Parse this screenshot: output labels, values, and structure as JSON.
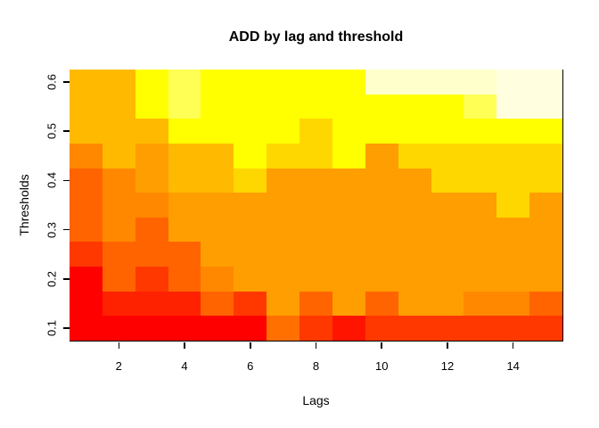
{
  "title": "ADD by lag and threshold",
  "x_axis": {
    "label": "Lags",
    "ticks": [
      "2",
      "4",
      "6",
      "8",
      "10",
      "12",
      "14"
    ],
    "tick_values": [
      2,
      4,
      6,
      8,
      10,
      12,
      14
    ]
  },
  "y_axis": {
    "label": "Thresholds",
    "ticks": [
      "0.1",
      "0.2",
      "0.3",
      "0.4",
      "0.5",
      "0.6"
    ],
    "tick_values": [
      0.1,
      0.2,
      0.3,
      0.4,
      0.5,
      0.6
    ]
  },
  "chart_data": {
    "type": "heatmap",
    "title": "ADD by lag and threshold",
    "xlabel": "Lags",
    "ylabel": "Thresholds",
    "x_categories_lags": [
      1,
      2,
      3,
      4,
      5,
      6,
      7,
      8,
      9,
      10,
      11,
      12,
      13,
      14,
      15
    ],
    "y_categories_thresholds_top_to_bottom": [
      0.6,
      0.55,
      0.5,
      0.45,
      0.4,
      0.35,
      0.3,
      0.25,
      0.2,
      0.15,
      0.1
    ],
    "x_range": [
      0.5,
      15.5
    ],
    "y_range": [
      0.075,
      0.625
    ],
    "grid": false,
    "legend": "none",
    "palette_style": "heat.colors (red -> orange -> yellow -> near-white); numeric scale not shown, values encoded as cell colors",
    "palette_levels_low_to_high": [
      "#FF0000",
      "#FF1400",
      "#FF2200",
      "#FF3800",
      "#FF6400",
      "#FF7000",
      "#FF8800",
      "#FF9E00",
      "#FFBA00",
      "#FFD700",
      "#FFFF00",
      "#FFFF55",
      "#FFFFCC",
      "#FFFFE0"
    ],
    "cell_colors_rows_top_to_bottom": [
      [
        "#FFBA00",
        "#FFBA00",
        "#FFFF00",
        "#FFFF55",
        "#FFFF00",
        "#FFFF00",
        "#FFFF00",
        "#FFFF00",
        "#FFFF00",
        "#FFFFCC",
        "#FFFFCC",
        "#FFFFCC",
        "#FFFFCC",
        "#FFFFE0",
        "#FFFFE0"
      ],
      [
        "#FFBA00",
        "#FFBA00",
        "#FFFF00",
        "#FFFF55",
        "#FFFF00",
        "#FFFF00",
        "#FFFF00",
        "#FFFF00",
        "#FFFF00",
        "#FFFF00",
        "#FFFF00",
        "#FFFF00",
        "#FFFF55",
        "#FFFFE0",
        "#FFFFE0"
      ],
      [
        "#FFBA00",
        "#FFBA00",
        "#FFBA00",
        "#FFFF00",
        "#FFFF00",
        "#FFFF00",
        "#FFFF00",
        "#FFD700",
        "#FFFF00",
        "#FFFF00",
        "#FFFF00",
        "#FFFF00",
        "#FFFF00",
        "#FFFF00",
        "#FFFF00"
      ],
      [
        "#FF8800",
        "#FFBA00",
        "#FF9E00",
        "#FFBA00",
        "#FFBA00",
        "#FFFF00",
        "#FFD700",
        "#FFD700",
        "#FFFF00",
        "#FF9E00",
        "#FFD700",
        "#FFD700",
        "#FFD700",
        "#FFD700",
        "#FFD700"
      ],
      [
        "#FF6400",
        "#FF8800",
        "#FF9E00",
        "#FFBA00",
        "#FFBA00",
        "#FFD700",
        "#FF9E00",
        "#FF9E00",
        "#FF9E00",
        "#FF9E00",
        "#FF9E00",
        "#FFD700",
        "#FFD700",
        "#FFD700",
        "#FFD700"
      ],
      [
        "#FF6400",
        "#FF8800",
        "#FF8800",
        "#FF9E00",
        "#FF9E00",
        "#FF9E00",
        "#FF9E00",
        "#FF9E00",
        "#FF9E00",
        "#FF9E00",
        "#FF9E00",
        "#FF9E00",
        "#FF9E00",
        "#FFD700",
        "#FF9E00"
      ],
      [
        "#FF6400",
        "#FF8800",
        "#FF6400",
        "#FF9E00",
        "#FF9E00",
        "#FF9E00",
        "#FF9E00",
        "#FF9E00",
        "#FF9E00",
        "#FF9E00",
        "#FF9E00",
        "#FF9E00",
        "#FF9E00",
        "#FF9E00",
        "#FF9E00"
      ],
      [
        "#FF3800",
        "#FF6400",
        "#FF6400",
        "#FF6400",
        "#FF9E00",
        "#FF9E00",
        "#FF9E00",
        "#FF9E00",
        "#FF9E00",
        "#FF9E00",
        "#FF9E00",
        "#FF9E00",
        "#FF9E00",
        "#FF9E00",
        "#FF9E00"
      ],
      [
        "#FF0000",
        "#FF6400",
        "#FF3800",
        "#FF6400",
        "#FF8800",
        "#FF9E00",
        "#FF9E00",
        "#FF9E00",
        "#FF9E00",
        "#FF9E00",
        "#FF9E00",
        "#FF9E00",
        "#FF9E00",
        "#FF9E00",
        "#FF9E00"
      ],
      [
        "#FF0000",
        "#FF2200",
        "#FF2200",
        "#FF2200",
        "#FF6400",
        "#FF3800",
        "#FF9E00",
        "#FF6400",
        "#FF9E00",
        "#FF6400",
        "#FF9E00",
        "#FF9E00",
        "#FF8800",
        "#FF8800",
        "#FF6400"
      ],
      [
        "#FF0000",
        "#FF0000",
        "#FF0000",
        "#FF0000",
        "#FF0000",
        "#FF0000",
        "#FF7000",
        "#FF3800",
        "#FF1400",
        "#FF3800",
        "#FF3800",
        "#FF3800",
        "#FF3800",
        "#FF3800",
        "#FF3800"
      ]
    ],
    "axis_color": "#000000",
    "background_color": "#FFFFFF"
  }
}
